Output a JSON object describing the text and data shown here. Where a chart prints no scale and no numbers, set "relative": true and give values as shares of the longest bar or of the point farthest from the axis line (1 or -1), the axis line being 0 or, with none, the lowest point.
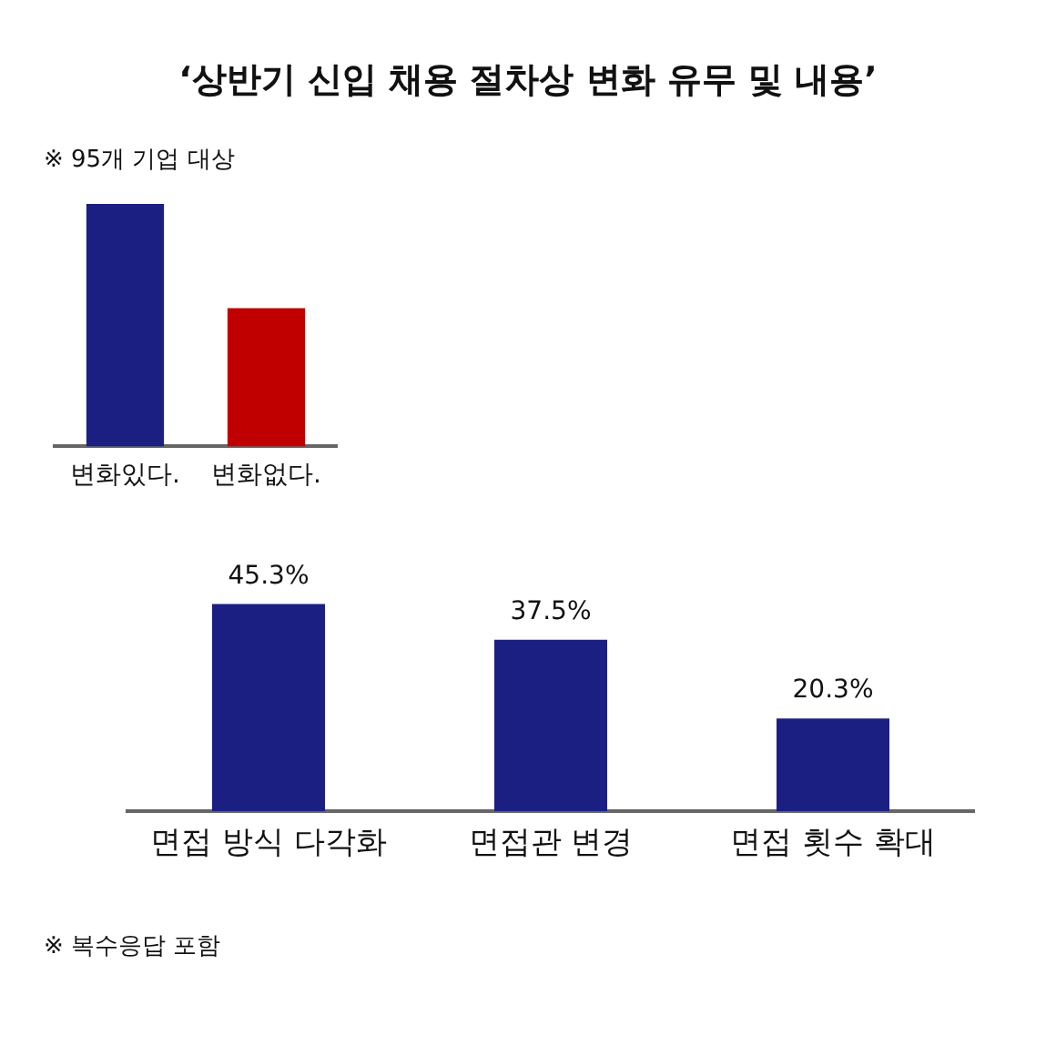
{
  "chart_data": [
    {
      "type": "bar",
      "title": "‘상반기 신입 채용 절차상 변화 유무 및 내용’",
      "annotations": [
        "※ 95개 기업 대상"
      ],
      "categories": [
        "변화있다.",
        "변화없다."
      ],
      "values": [
        1,
        0.57
      ],
      "colors": [
        "#1b1f82",
        "#c00000"
      ],
      "relative": true
    },
    {
      "type": "bar",
      "categories": [
        "면접 방식 다각화",
        "면접관 변경",
        "면접 횟수 확대"
      ],
      "values": [
        45.3,
        37.5,
        20.3
      ],
      "colors": [
        "#1b1f82",
        "#1b1f82",
        "#1b1f82"
      ],
      "value_labels": [
        "45.3%",
        "37.5%",
        "20.3%"
      ],
      "annotations": [
        "※ 복수응답 포함"
      ]
    }
  ]
}
